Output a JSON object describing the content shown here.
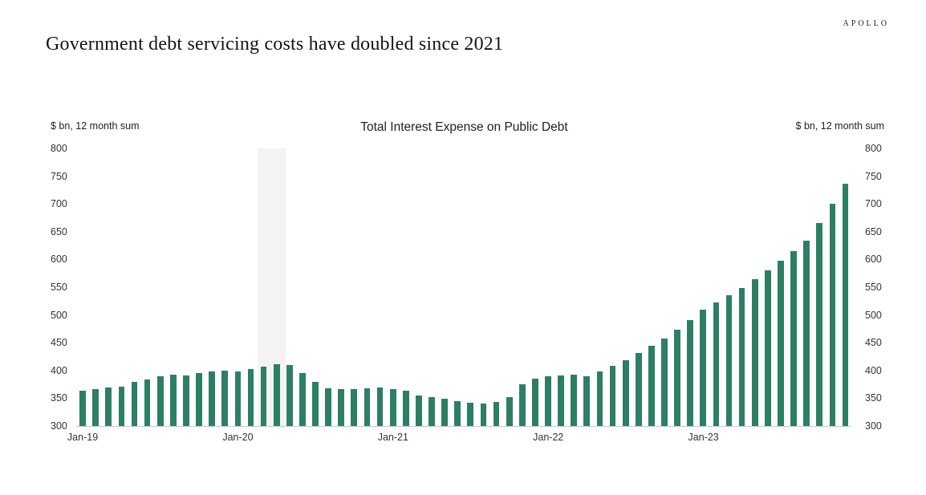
{
  "brand": "APOLLO",
  "page_title": "Government debt servicing costs have doubled since 2021",
  "chart_data": {
    "type": "bar",
    "title": "Total Interest Expense on Public Debt",
    "left_axis_label": "$ bn, 12 month sum",
    "right_axis_label": "$ bn, 12 month sum",
    "xlabel": "",
    "ylabel": "$ bn, 12 month sum",
    "ylim": [
      300,
      800
    ],
    "ytick_step": 50,
    "grid": "off",
    "legend": "none",
    "frequency": "monthly",
    "x_start": "Jan-19",
    "x_end": "Dec-23",
    "bar_color": "#2d7f63",
    "recession_band": {
      "color": "#f3f3f3",
      "start_month_index": 14,
      "end_month_index": 16.2
    },
    "xticks": [
      {
        "label": "Jan-19",
        "month_index": 0
      },
      {
        "label": "Jan-20",
        "month_index": 12
      },
      {
        "label": "Jan-21",
        "month_index": 24
      },
      {
        "label": "Jan-22",
        "month_index": 36
      },
      {
        "label": "Jan-23",
        "month_index": 48
      }
    ],
    "values": [
      363,
      367,
      369,
      371,
      380,
      384,
      390,
      393,
      391,
      396,
      398,
      400,
      399,
      403,
      407,
      411,
      410,
      395,
      380,
      368,
      366,
      367,
      368,
      370,
      366,
      363,
      355,
      352,
      349,
      345,
      342,
      341,
      343,
      352,
      375,
      385,
      389,
      391,
      393,
      390,
      398,
      408,
      419,
      431,
      444,
      458,
      473,
      491,
      510,
      522,
      535,
      549,
      564,
      580,
      597,
      615,
      634,
      665,
      700,
      737
    ]
  }
}
